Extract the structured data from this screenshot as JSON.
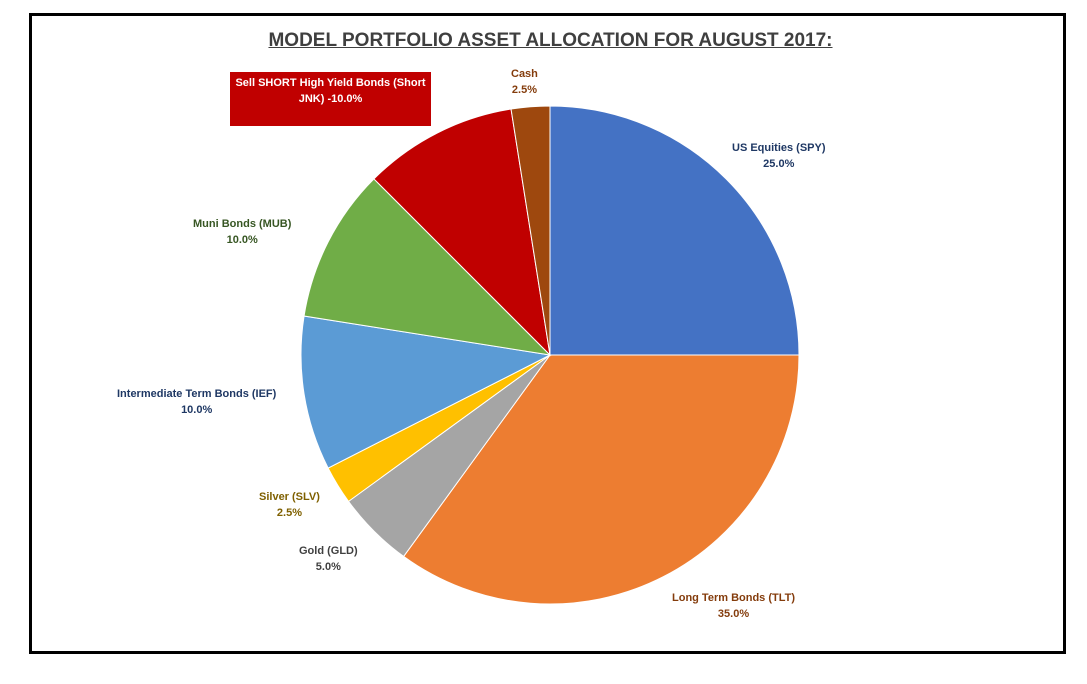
{
  "chart_data": {
    "type": "pie",
    "title": "MODEL PORTFOLIO ASSET ALLOCATION FOR AUGUST 2017:",
    "slices": [
      {
        "name": "US Equities (SPY)",
        "value": 25.0,
        "label": "25.0%",
        "color": "#4472c4",
        "label_color": "#1f3864"
      },
      {
        "name": "Long Term Bonds (TLT)",
        "value": 35.0,
        "label": "35.0%",
        "color": "#ed7d31",
        "label_color": "#843c0c"
      },
      {
        "name": "Gold (GLD)",
        "value": 5.0,
        "label": "5.0%",
        "color": "#a5a5a5",
        "label_color": "#404040"
      },
      {
        "name": "Silver (SLV)",
        "value": 2.5,
        "label": "2.5%",
        "color": "#ffc000",
        "label_color": "#7f6000"
      },
      {
        "name": "Intermediate Term Bonds (IEF)",
        "value": 10.0,
        "label": "10.0%",
        "color": "#5b9bd5",
        "label_color": "#1f3864"
      },
      {
        "name": "Muni Bonds (MUB)",
        "value": 10.0,
        "label": "10.0%",
        "color": "#70ad47",
        "label_color": "#375623"
      },
      {
        "name": "Sell SHORT High Yield Bonds (Short JNK)",
        "value": 10.0,
        "label": "-10.0%",
        "color": "#c00000",
        "label_color": "#ffffff"
      },
      {
        "name": "Cash",
        "value": 2.5,
        "label": "2.5%",
        "color": "#9e480e",
        "label_color": "#843c0c"
      }
    ],
    "start_angle": "12 o'clock",
    "direction": "clockwise"
  },
  "callout": {
    "line1": "Sell SHORT High Yield Bonds (Short",
    "line2": "JNK)",
    "line3": "-10.0%"
  }
}
